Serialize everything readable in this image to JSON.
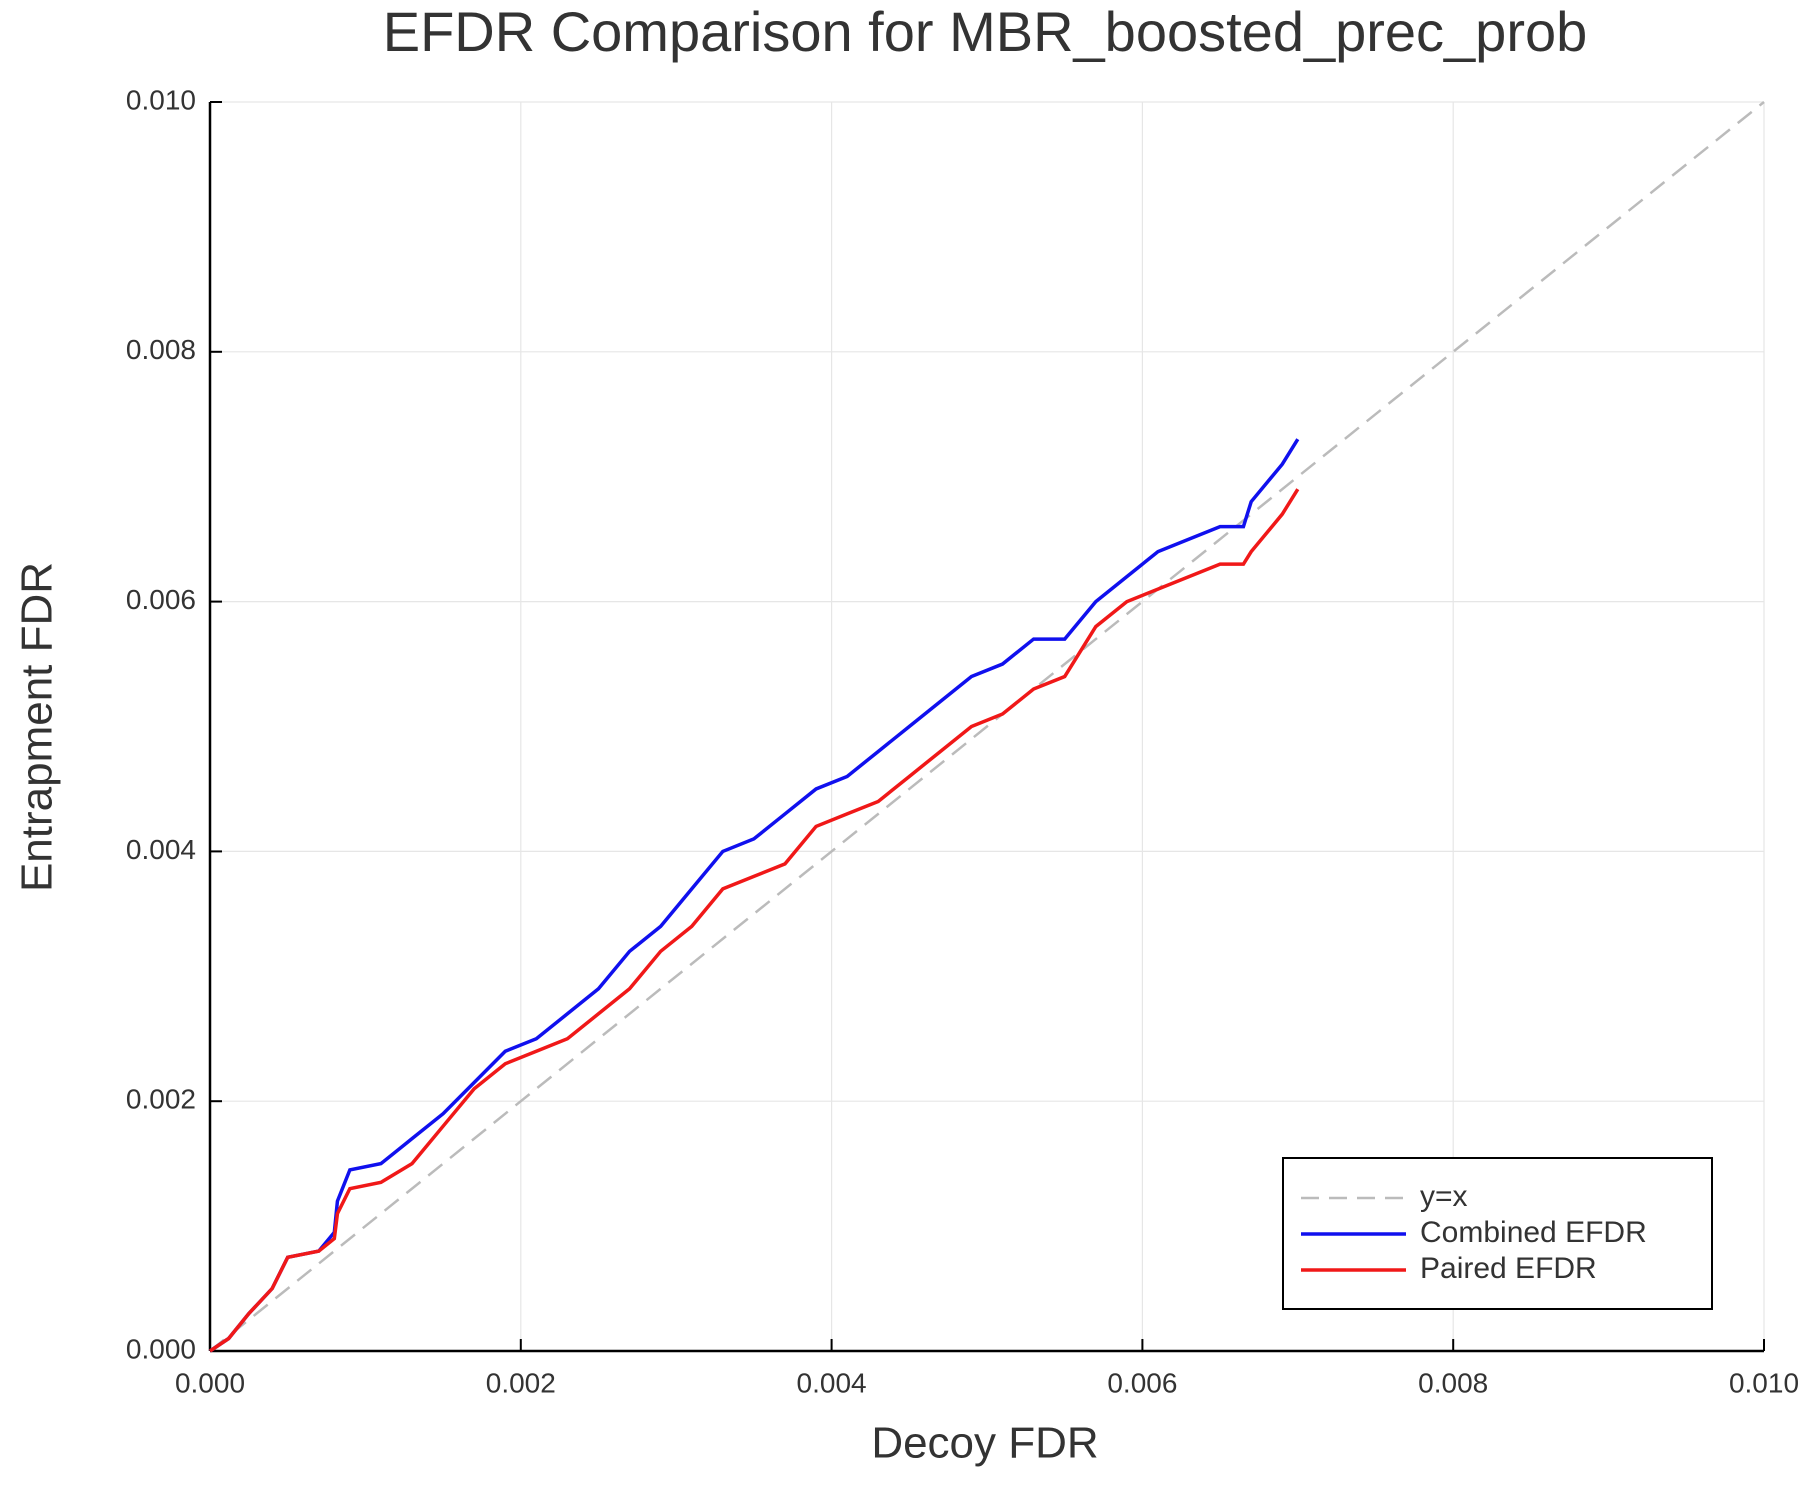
{
  "chart_data": {
    "type": "line",
    "title": "EFDR Comparison for MBR_boosted_prec_prob",
    "x_label": "Decoy FDR",
    "y_label": "Entrapment FDR",
    "x": [
      0,
      0.00012,
      0.00025,
      0.0004,
      0.0005,
      0.0007,
      0.0008,
      0.00082,
      0.0009,
      0.0011,
      0.0013,
      0.0015,
      0.0017,
      0.0019,
      0.0021,
      0.0023,
      0.0025,
      0.0027,
      0.0029,
      0.0031,
      0.0033,
      0.0035,
      0.0037,
      0.0039,
      0.0041,
      0.0043,
      0.0045,
      0.0047,
      0.0049,
      0.0051,
      0.0053,
      0.0055,
      0.0057,
      0.0059,
      0.0061,
      0.0063,
      0.0065,
      0.00665,
      0.0067,
      0.0069,
      0.007
    ],
    "series": [
      {
        "name": "y=x",
        "color": "#bbbbbb",
        "dashed": true,
        "x": [
          0,
          0.01
        ],
        "values": [
          0,
          0.01
        ]
      },
      {
        "name": "Combined EFDR",
        "color": "#1010ee",
        "values": [
          0,
          0.0001,
          0.0003,
          0.0005,
          0.00075,
          0.0008,
          0.00095,
          0.0012,
          0.00145,
          0.0015,
          0.0017,
          0.0019,
          0.00215,
          0.0024,
          0.0025,
          0.0027,
          0.0029,
          0.0032,
          0.0034,
          0.0037,
          0.004,
          0.0041,
          0.0043,
          0.0045,
          0.0046,
          0.0048,
          0.005,
          0.0052,
          0.0054,
          0.0055,
          0.0057,
          0.0057,
          0.006,
          0.0062,
          0.0064,
          0.0065,
          0.0066,
          0.0066,
          0.0068,
          0.0071,
          0.0073
        ]
      },
      {
        "name": "Paired EFDR",
        "color": "#f01818",
        "values": [
          0,
          0.0001,
          0.0003,
          0.0005,
          0.00075,
          0.0008,
          0.0009,
          0.0011,
          0.0013,
          0.00135,
          0.0015,
          0.0018,
          0.0021,
          0.0023,
          0.0024,
          0.0025,
          0.0027,
          0.0029,
          0.0032,
          0.0034,
          0.0037,
          0.0038,
          0.0039,
          0.0042,
          0.0043,
          0.0044,
          0.0046,
          0.0048,
          0.005,
          0.0051,
          0.0053,
          0.0054,
          0.0058,
          0.006,
          0.0061,
          0.0062,
          0.0063,
          0.0063,
          0.0064,
          0.0067,
          0.0069
        ]
      }
    ],
    "xlim": [
      0,
      0.01
    ],
    "ylim": [
      0,
      0.01
    ],
    "xticks": [
      {
        "value": 0,
        "label": "0.000"
      },
      {
        "value": 0.002,
        "label": "0.002"
      },
      {
        "value": 0.004,
        "label": "0.004"
      },
      {
        "value": 0.006,
        "label": "0.006"
      },
      {
        "value": 0.008,
        "label": "0.008"
      },
      {
        "value": 0.01,
        "label": "0.010"
      }
    ],
    "yticks": [
      {
        "value": 0,
        "label": "0.000"
      },
      {
        "value": 0.002,
        "label": "0.002"
      },
      {
        "value": 0.004,
        "label": "0.004"
      },
      {
        "value": 0.006,
        "label": "0.006"
      },
      {
        "value": 0.008,
        "label": "0.008"
      },
      {
        "value": 0.01,
        "label": "0.010"
      }
    ],
    "grid": true,
    "legend": "lower right"
  }
}
